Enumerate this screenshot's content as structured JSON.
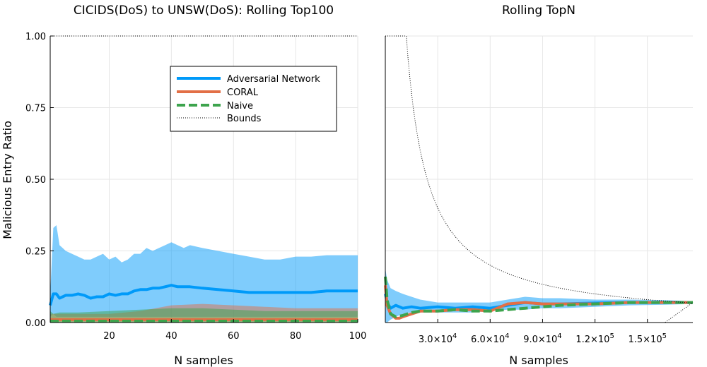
{
  "chart_data": [
    {
      "type": "line",
      "title": "CICIDS(DoS) to UNSW(DoS): Rolling Top100",
      "xlabel": "N samples",
      "ylabel": "Malicious Entry Ratio",
      "xlim": [
        1,
        100
      ],
      "ylim": [
        0,
        1
      ],
      "xticks": [
        20,
        40,
        60,
        80,
        100
      ],
      "xtick_labels": [
        "20",
        "40",
        "60",
        "80",
        "100"
      ],
      "yticks": [
        0,
        0.25,
        0.5,
        0.75,
        1
      ],
      "ytick_labels": [
        "0.00",
        "0.25",
        "0.50",
        "0.75",
        "1.00"
      ],
      "grid": true,
      "legend_position": "top-right",
      "legend": [
        "Adversarial Network",
        "CORAL",
        "Naive",
        "Bounds"
      ],
      "series": [
        {
          "name": "Adversarial Network",
          "color": "#009af9",
          "x": [
            1,
            2,
            3,
            4,
            5,
            6,
            8,
            10,
            12,
            14,
            16,
            18,
            20,
            22,
            24,
            26,
            28,
            30,
            32,
            34,
            36,
            38,
            40,
            42,
            44,
            46,
            50,
            55,
            60,
            65,
            70,
            75,
            80,
            85,
            90,
            95,
            100
          ],
          "mean": [
            0.06,
            0.1,
            0.1,
            0.085,
            0.09,
            0.095,
            0.095,
            0.1,
            0.095,
            0.085,
            0.09,
            0.09,
            0.1,
            0.095,
            0.1,
            0.1,
            0.11,
            0.115,
            0.115,
            0.12,
            0.12,
            0.125,
            0.13,
            0.125,
            0.125,
            0.125,
            0.12,
            0.115,
            0.11,
            0.105,
            0.105,
            0.105,
            0.105,
            0.105,
            0.11,
            0.11,
            0.11
          ],
          "upper": [
            0.1,
            0.33,
            0.34,
            0.27,
            0.26,
            0.25,
            0.24,
            0.23,
            0.22,
            0.22,
            0.23,
            0.24,
            0.22,
            0.23,
            0.21,
            0.22,
            0.24,
            0.24,
            0.26,
            0.25,
            0.26,
            0.27,
            0.28,
            0.27,
            0.26,
            0.27,
            0.26,
            0.25,
            0.24,
            0.23,
            0.22,
            0.22,
            0.23,
            0.23,
            0.235,
            0.235,
            0.235
          ],
          "lower": [
            0.02,
            0.03,
            0.02,
            0.02,
            0.02,
            0.02,
            0.02,
            0.02,
            0.02,
            0.02,
            0.02,
            0.02,
            0.02,
            0.02,
            0.02,
            0.02,
            0.02,
            0.02,
            0.02,
            0.02,
            0.02,
            0.02,
            0.02,
            0.02,
            0.02,
            0.02,
            0.02,
            0.02,
            0.02,
            0.02,
            0.02,
            0.02,
            0.02,
            0.02,
            0.02,
            0.02,
            0.02
          ]
        },
        {
          "name": "CORAL",
          "color": "#e26f46",
          "x": [
            1,
            10,
            20,
            30,
            40,
            50,
            60,
            70,
            80,
            90,
            100
          ],
          "mean": [
            0.01,
            0.01,
            0.01,
            0.01,
            0.01,
            0.01,
            0.01,
            0.01,
            0.01,
            0.01,
            0.01
          ],
          "upper": [
            0.03,
            0.03,
            0.03,
            0.04,
            0.06,
            0.065,
            0.06,
            0.055,
            0.05,
            0.05,
            0.05
          ],
          "lower": [
            0.0,
            0.0,
            0.0,
            0.0,
            0.0,
            0.0,
            0.0,
            0.0,
            0.0,
            0.0,
            0.0
          ]
        },
        {
          "name": "Naive",
          "color": "#3da44d",
          "x": [
            1,
            2,
            4,
            10,
            20,
            30,
            40,
            50,
            60,
            70,
            80,
            90,
            100
          ],
          "mean": [
            0.005,
            0.005,
            0.005,
            0.005,
            0.005,
            0.005,
            0.005,
            0.005,
            0.005,
            0.005,
            0.005,
            0.005,
            0.005
          ],
          "upper": [
            0.04,
            0.03,
            0.035,
            0.035,
            0.04,
            0.045,
            0.05,
            0.05,
            0.045,
            0.04,
            0.04,
            0.04,
            0.04
          ],
          "lower": [
            0.0,
            0.0,
            0.0,
            0.0,
            0.0,
            0.0,
            0.0,
            0.0,
            0.0,
            0.0,
            0.0,
            0.0,
            0.0
          ]
        },
        {
          "name": "Bounds",
          "color": "#000000",
          "style": "dotted",
          "lines": [
            {
              "x": [
                1,
                100
              ],
              "y": [
                1,
                1
              ]
            },
            {
              "x": [
                1,
                100
              ],
              "y": [
                0,
                0
              ]
            }
          ]
        }
      ]
    },
    {
      "type": "line",
      "title": "Rolling TopN",
      "xlabel": "N samples",
      "ylabel": "",
      "xlim": [
        1,
        176000
      ],
      "ylim": [
        0,
        1
      ],
      "xticks": [
        30000,
        60000,
        90000,
        120000,
        150000
      ],
      "xtick_labels": [
        {
          "m": "3.0",
          "e": "4"
        },
        {
          "m": "6.0",
          "e": "4"
        },
        {
          "m": "9.0",
          "e": "4"
        },
        {
          "m": "1.2",
          "e": "5"
        },
        {
          "m": "1.5",
          "e": "5"
        }
      ],
      "grid": true,
      "series": [
        {
          "name": "Adversarial Network",
          "color": "#009af9",
          "x": [
            1,
            1000,
            3000,
            6000,
            10000,
            15000,
            20000,
            30000,
            40000,
            50000,
            60000,
            70000,
            80000,
            90000,
            100000,
            120000,
            140000,
            160000,
            176000
          ],
          "mean": [
            0.1,
            0.07,
            0.05,
            0.06,
            0.05,
            0.055,
            0.05,
            0.055,
            0.05,
            0.055,
            0.05,
            0.06,
            0.07,
            0.065,
            0.065,
            0.068,
            0.07,
            0.07,
            0.07
          ],
          "upper": [
            0.19,
            0.15,
            0.12,
            0.11,
            0.1,
            0.09,
            0.08,
            0.07,
            0.07,
            0.07,
            0.07,
            0.08,
            0.09,
            0.085,
            0.085,
            0.08,
            0.08,
            0.078,
            0.075
          ],
          "lower": [
            0.0,
            0.0,
            0.01,
            0.02,
            0.03,
            0.035,
            0.035,
            0.035,
            0.035,
            0.035,
            0.04,
            0.045,
            0.045,
            0.05,
            0.05,
            0.055,
            0.06,
            0.062,
            0.065
          ]
        },
        {
          "name": "CORAL",
          "color": "#e26f46",
          "x": [
            1,
            1000,
            3000,
            6000,
            8000,
            10000,
            15000,
            20000,
            30000,
            40000,
            50000,
            60000,
            70000,
            80000,
            90000,
            100000,
            120000,
            140000,
            160000,
            176000
          ],
          "mean": [
            0.13,
            0.06,
            0.03,
            0.015,
            0.015,
            0.02,
            0.03,
            0.04,
            0.04,
            0.045,
            0.045,
            0.04,
            0.065,
            0.07,
            0.065,
            0.065,
            0.065,
            0.07,
            0.07,
            0.07
          ]
        },
        {
          "name": "Naive",
          "color": "#3da44d",
          "x": [
            1,
            1000,
            3000,
            6000,
            10000,
            15000,
            20000,
            30000,
            40000,
            50000,
            60000,
            70000,
            80000,
            90000,
            100000,
            120000,
            140000,
            160000,
            176000
          ],
          "mean": [
            0.16,
            0.08,
            0.03,
            0.02,
            0.025,
            0.035,
            0.04,
            0.04,
            0.045,
            0.04,
            0.04,
            0.045,
            0.05,
            0.055,
            0.06,
            0.065,
            0.07,
            0.07,
            0.07
          ]
        },
        {
          "name": "Bounds",
          "color": "#000000",
          "style": "dotted",
          "upper_formula": "min(1, 12000 / x)",
          "lower": {
            "x": [
              1,
              160000,
              176000
            ],
            "y": [
              0,
              0,
              0.07
            ]
          }
        }
      ]
    }
  ]
}
